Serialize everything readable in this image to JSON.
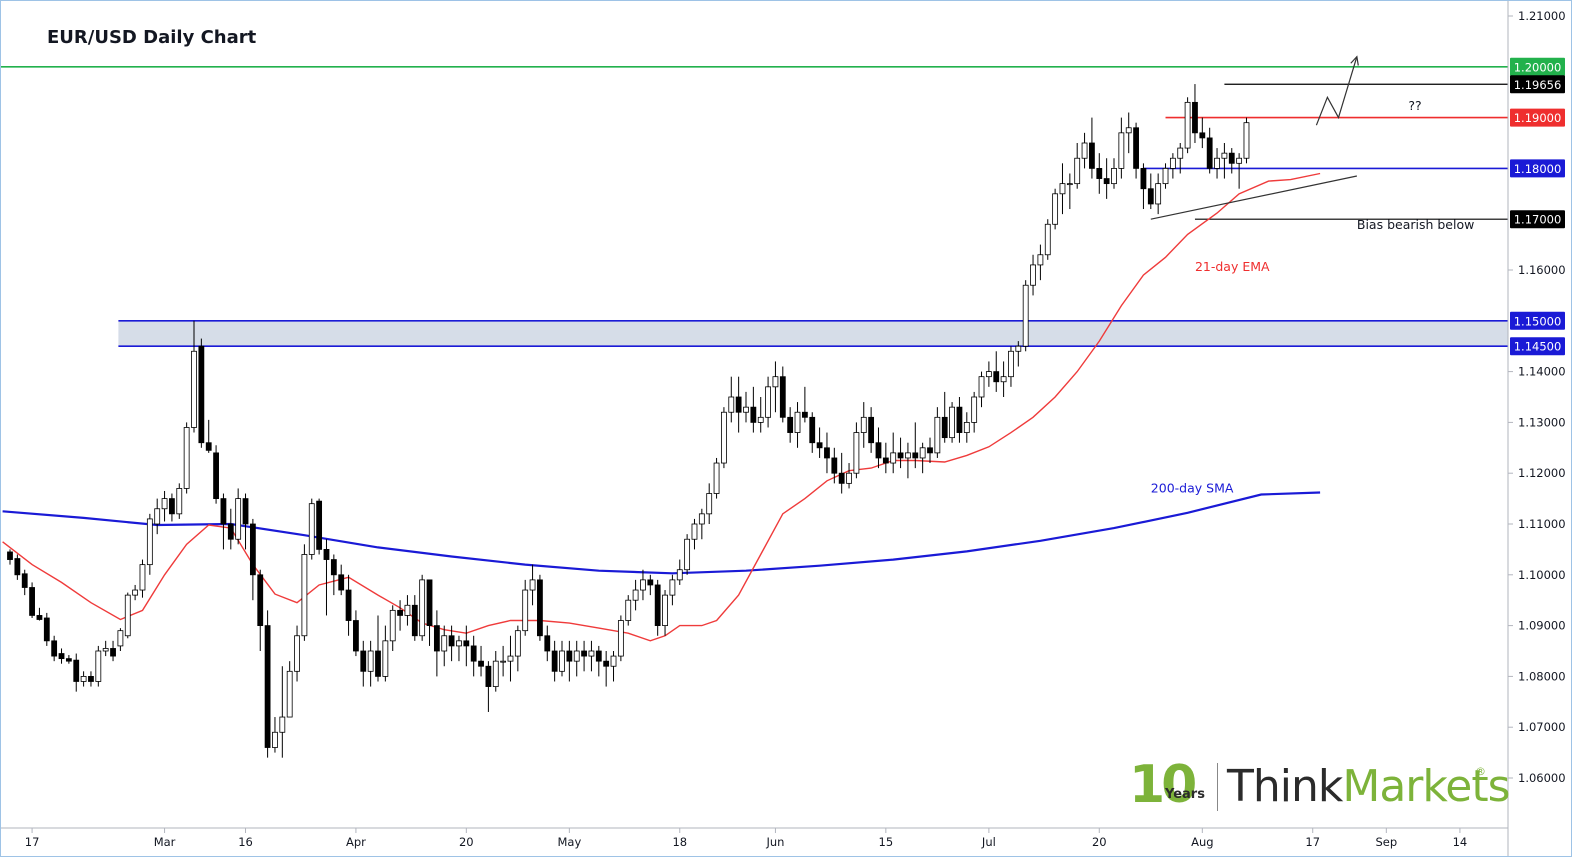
{
  "title": "EUR/USD Daily Chart",
  "colors": {
    "bull": "#ffffff",
    "bear": "#000000",
    "wick": "#000000",
    "ema": "#ef3b3b",
    "sma": "#1a1ad6",
    "green": "#22b14c",
    "red": "#ef2e2e",
    "blue": "#1a1ad6",
    "zone": "#d6dde8",
    "black_label": "#000000",
    "logo_green": "#7db33a"
  },
  "chart_data": {
    "type": "candlestick",
    "title": "EUR/USD Daily Chart",
    "ylim": [
      1.0505,
      1.2103
    ],
    "y_tick_labels": [
      "1.21000",
      "1.20000",
      "1.19656",
      "1.19000",
      "1.18000",
      "1.17000",
      "1.16000",
      "1.15000",
      "1.14500",
      "1.14000",
      "1.13000",
      "1.12000",
      "1.11000",
      "1.10000",
      "1.09000",
      "1.08000",
      "1.07000",
      "1.06000"
    ],
    "plain_ticks": [
      1.21,
      1.16,
      1.14,
      1.13,
      1.12,
      1.11,
      1.1,
      1.09,
      1.08,
      1.07,
      1.06
    ],
    "x_tick_labels": [
      "17",
      "Mar",
      "16",
      "Apr",
      "20",
      "May",
      "18",
      "Jun",
      "15",
      "Jul",
      "20",
      "Aug",
      "17",
      "Sep",
      "14"
    ],
    "x_tick_bar_index": [
      3,
      21,
      32,
      47,
      62,
      76,
      91,
      104,
      119,
      133,
      148,
      162,
      177,
      187,
      197
    ],
    "levels": [
      {
        "name": "resistance-1.20000",
        "value": 1.2,
        "label": "1.20000",
        "color": "green",
        "from_bar": -3
      },
      {
        "name": "level-1.19656",
        "value": 1.19656,
        "label": "1.19656",
        "color": "black",
        "from_bar": 165
      },
      {
        "name": "resistance-1.19000",
        "value": 1.19,
        "label": "1.19000",
        "color": "red",
        "from_bar": 157
      },
      {
        "name": "support-1.18000",
        "value": 1.18,
        "label": "1.18000",
        "color": "blue",
        "from_bar": 154
      },
      {
        "name": "support-1.17000",
        "value": 1.17,
        "label": "1.17000",
        "color": "black",
        "from_bar": 161
      }
    ],
    "zone": {
      "low": 1.145,
      "high": 1.15,
      "labels": [
        "1.15000",
        "1.14500"
      ],
      "from_bar": 15
    },
    "annotations": [
      {
        "name": "bias-bearish-label",
        "text": "Bias bearish below",
        "bar": 183,
        "y": 1.1681
      },
      {
        "name": "question-label",
        "text": "??",
        "bar": 190,
        "y": 1.1915
      },
      {
        "name": "ema-label",
        "text": "21-day EMA",
        "bar": 161,
        "y": 1.1598
      },
      {
        "name": "sma-label",
        "text": "200-day SMA",
        "bar": 155,
        "y": 1.1162
      }
    ],
    "trendline": {
      "from": {
        "bar": 155,
        "y": 1.17
      },
      "to": {
        "bar": 183,
        "y": 1.1785
      }
    },
    "projection": [
      {
        "bar": 177.5,
        "y": 1.1885
      },
      {
        "bar": 179,
        "y": 1.194
      },
      {
        "bar": 180.5,
        "y": 1.19
      },
      {
        "bar": 183,
        "y": 1.202
      }
    ],
    "sma_200": [
      [
        -1,
        1.1125
      ],
      [
        10,
        1.1112
      ],
      [
        20,
        1.1098
      ],
      [
        30,
        1.11
      ],
      [
        40,
        1.1078
      ],
      [
        50,
        1.1054
      ],
      [
        60,
        1.1036
      ],
      [
        70,
        1.102
      ],
      [
        80,
        1.1008
      ],
      [
        90,
        1.1003
      ],
      [
        100,
        1.1008
      ],
      [
        110,
        1.1018
      ],
      [
        120,
        1.103
      ],
      [
        130,
        1.1046
      ],
      [
        140,
        1.1067
      ],
      [
        150,
        1.1092
      ],
      [
        160,
        1.1122
      ],
      [
        170,
        1.1158
      ],
      [
        178,
        1.1162
      ]
    ],
    "ema_21": [
      [
        -1,
        1.1065
      ],
      [
        3,
        1.102
      ],
      [
        7,
        1.0985
      ],
      [
        11,
        1.0945
      ],
      [
        15,
        1.0912
      ],
      [
        18,
        1.093
      ],
      [
        21,
        1.1
      ],
      [
        24,
        1.106
      ],
      [
        27,
        1.1098
      ],
      [
        30,
        1.1092
      ],
      [
        33,
        1.102
      ],
      [
        36,
        1.0962
      ],
      [
        39,
        1.0945
      ],
      [
        42,
        1.098
      ],
      [
        46,
        1.0995
      ],
      [
        50,
        1.096
      ],
      [
        53,
        1.0935
      ],
      [
        56,
        1.0905
      ],
      [
        59,
        1.0892
      ],
      [
        62,
        1.0885
      ],
      [
        65,
        1.09
      ],
      [
        68,
        1.091
      ],
      [
        72,
        1.091
      ],
      [
        76,
        1.0905
      ],
      [
        80,
        1.0895
      ],
      [
        84,
        1.0885
      ],
      [
        87,
        1.087
      ],
      [
        89,
        1.088
      ],
      [
        91,
        1.09
      ],
      [
        94,
        1.09
      ],
      [
        96,
        1.091
      ],
      [
        99,
        1.096
      ],
      [
        102,
        1.104
      ],
      [
        105,
        1.112
      ],
      [
        108,
        1.115
      ],
      [
        111,
        1.1185
      ],
      [
        114,
        1.1205
      ],
      [
        117,
        1.121
      ],
      [
        120,
        1.1225
      ],
      [
        123,
        1.1225
      ],
      [
        127,
        1.1222
      ],
      [
        130,
        1.1235
      ],
      [
        133,
        1.1252
      ],
      [
        136,
        1.128
      ],
      [
        139,
        1.131
      ],
      [
        142,
        1.135
      ],
      [
        145,
        1.14
      ],
      [
        148,
        1.146
      ],
      [
        151,
        1.153
      ],
      [
        154,
        1.159
      ],
      [
        157,
        1.1625
      ],
      [
        160,
        1.167
      ],
      [
        164,
        1.1712
      ],
      [
        167,
        1.175
      ],
      [
        171,
        1.1775
      ],
      [
        174,
        1.1778
      ],
      [
        178,
        1.179
      ]
    ],
    "ohlc": [
      [
        1.1045,
        1.105,
        1.102,
        1.103
      ],
      [
        1.1032,
        1.104,
        1.099,
        1.1
      ],
      [
        1.1002,
        1.101,
        1.096,
        1.0975
      ],
      [
        1.0975,
        1.0985,
        1.0915,
        1.092
      ],
      [
        1.092,
        1.0935,
        1.091,
        1.0912
      ],
      [
        1.0915,
        1.0925,
        1.086,
        1.087
      ],
      [
        1.087,
        1.088,
        1.083,
        1.084
      ],
      [
        1.0845,
        1.0855,
        1.0825,
        1.0835
      ],
      [
        1.0835,
        1.0842,
        1.0825,
        1.083
      ],
      [
        1.0832,
        1.0845,
        1.077,
        1.079
      ],
      [
        1.079,
        1.081,
        1.078,
        1.08
      ],
      [
        1.08,
        1.081,
        1.078,
        1.079
      ],
      [
        1.079,
        1.086,
        1.078,
        1.085
      ],
      [
        1.085,
        1.087,
        1.084,
        1.0855
      ],
      [
        1.0855,
        1.087,
        1.083,
        1.084
      ],
      [
        1.086,
        1.0895,
        1.085,
        1.089
      ],
      [
        1.088,
        1.0965,
        1.0875,
        1.096
      ],
      [
        1.096,
        1.098,
        1.095,
        1.097
      ],
      [
        1.097,
        1.103,
        1.0955,
        1.102
      ],
      [
        1.102,
        1.112,
        1.1,
        1.111
      ],
      [
        1.11,
        1.115,
        1.108,
        1.113
      ],
      [
        1.113,
        1.1165,
        1.1105,
        1.115
      ],
      [
        1.115,
        1.116,
        1.1105,
        1.112
      ],
      [
        1.112,
        1.118,
        1.111,
        1.117
      ],
      [
        1.117,
        1.13,
        1.116,
        1.129
      ],
      [
        1.129,
        1.15,
        1.128,
        1.144
      ],
      [
        1.145,
        1.1465,
        1.125,
        1.126
      ],
      [
        1.126,
        1.1305,
        1.124,
        1.1245
      ],
      [
        1.124,
        1.1255,
        1.114,
        1.115
      ],
      [
        1.115,
        1.116,
        1.105,
        1.11
      ],
      [
        1.11,
        1.113,
        1.105,
        1.107
      ],
      [
        1.107,
        1.117,
        1.106,
        1.115
      ],
      [
        1.115,
        1.116,
        1.105,
        1.11
      ],
      [
        1.11,
        1.111,
        1.095,
        1.1
      ],
      [
        1.1,
        1.101,
        1.085,
        1.09
      ],
      [
        1.09,
        1.093,
        1.064,
        1.066
      ],
      [
        1.066,
        1.072,
        1.065,
        1.069
      ],
      [
        1.069,
        1.082,
        1.064,
        1.072
      ],
      [
        1.072,
        1.083,
        1.072,
        1.081
      ],
      [
        1.081,
        1.09,
        1.079,
        1.088
      ],
      [
        1.088,
        1.106,
        1.087,
        1.104
      ],
      [
        1.104,
        1.115,
        1.103,
        1.114
      ],
      [
        1.1145,
        1.115,
        1.104,
        1.105
      ],
      [
        1.105,
        1.107,
        1.092,
        1.103
      ],
      [
        1.103,
        1.104,
        1.096,
        1.1
      ],
      [
        1.1,
        1.102,
        1.096,
        1.097
      ],
      [
        1.097,
        1.1,
        1.088,
        1.091
      ],
      [
        1.091,
        1.093,
        1.084,
        1.085
      ],
      [
        1.085,
        1.087,
        1.078,
        1.081
      ],
      [
        1.081,
        1.087,
        1.078,
        1.085
      ],
      [
        1.085,
        1.092,
        1.079,
        1.08
      ],
      [
        1.08,
        1.09,
        1.079,
        1.087
      ],
      [
        1.087,
        1.094,
        1.085,
        1.093
      ],
      [
        1.093,
        1.095,
        1.089,
        1.092
      ],
      [
        1.092,
        1.096,
        1.09,
        1.094
      ],
      [
        1.094,
        1.096,
        1.087,
        1.088
      ],
      [
        1.088,
        1.1,
        1.087,
        1.099
      ],
      [
        1.099,
        1.099,
        1.086,
        1.09
      ],
      [
        1.09,
        1.093,
        1.08,
        1.085
      ],
      [
        1.085,
        1.09,
        1.082,
        1.088
      ],
      [
        1.088,
        1.09,
        1.083,
        1.086
      ],
      [
        1.086,
        1.088,
        1.083,
        1.087
      ],
      [
        1.087,
        1.09,
        1.082,
        1.086
      ],
      [
        1.086,
        1.088,
        1.08,
        1.083
      ],
      [
        1.083,
        1.086,
        1.08,
        1.082
      ],
      [
        1.082,
        1.083,
        1.073,
        1.078
      ],
      [
        1.078,
        1.085,
        1.077,
        1.083
      ],
      [
        1.083,
        1.086,
        1.08,
        1.083
      ],
      [
        1.083,
        1.088,
        1.079,
        1.084
      ],
      [
        1.084,
        1.09,
        1.081,
        1.089
      ],
      [
        1.089,
        1.099,
        1.088,
        1.097
      ],
      [
        1.097,
        1.102,
        1.094,
        1.099
      ],
      [
        1.099,
        1.1,
        1.087,
        1.088
      ],
      [
        1.088,
        1.09,
        1.083,
        1.085
      ],
      [
        1.085,
        1.087,
        1.079,
        1.081
      ],
      [
        1.081,
        1.087,
        1.08,
        1.085
      ],
      [
        1.085,
        1.087,
        1.079,
        1.083
      ],
      [
        1.083,
        1.087,
        1.08,
        1.085
      ],
      [
        1.085,
        1.087,
        1.081,
        1.084
      ],
      [
        1.084,
        1.087,
        1.081,
        1.085
      ],
      [
        1.085,
        1.086,
        1.08,
        1.083
      ],
      [
        1.083,
        1.085,
        1.078,
        1.082
      ],
      [
        1.082,
        1.085,
        1.079,
        1.084
      ],
      [
        1.084,
        1.092,
        1.083,
        1.091
      ],
      [
        1.091,
        1.096,
        1.09,
        1.095
      ],
      [
        1.095,
        1.099,
        1.093,
        1.097
      ],
      [
        1.097,
        1.101,
        1.095,
        1.099
      ],
      [
        1.099,
        1.1,
        1.096,
        1.098
      ],
      [
        1.098,
        1.099,
        1.088,
        1.09
      ],
      [
        1.09,
        1.097,
        1.088,
        1.096
      ],
      [
        1.096,
        1.1,
        1.094,
        1.099
      ],
      [
        1.099,
        1.103,
        1.098,
        1.101
      ],
      [
        1.101,
        1.108,
        1.1,
        1.107
      ],
      [
        1.107,
        1.111,
        1.105,
        1.11
      ],
      [
        1.11,
        1.113,
        1.107,
        1.112
      ],
      [
        1.112,
        1.118,
        1.11,
        1.116
      ],
      [
        1.116,
        1.123,
        1.115,
        1.122
      ],
      [
        1.122,
        1.133,
        1.121,
        1.132
      ],
      [
        1.132,
        1.139,
        1.13,
        1.135
      ],
      [
        1.135,
        1.139,
        1.128,
        1.132
      ],
      [
        1.132,
        1.136,
        1.13,
        1.133
      ],
      [
        1.133,
        1.137,
        1.128,
        1.13
      ],
      [
        1.13,
        1.135,
        1.128,
        1.131
      ],
      [
        1.131,
        1.139,
        1.129,
        1.137
      ],
      [
        1.137,
        1.142,
        1.132,
        1.139
      ],
      [
        1.139,
        1.141,
        1.13,
        1.131
      ],
      [
        1.131,
        1.133,
        1.126,
        1.128
      ],
      [
        1.128,
        1.134,
        1.125,
        1.132
      ],
      [
        1.132,
        1.137,
        1.13,
        1.131
      ],
      [
        1.131,
        1.132,
        1.124,
        1.126
      ],
      [
        1.126,
        1.129,
        1.123,
        1.125
      ],
      [
        1.125,
        1.128,
        1.12,
        1.123
      ],
      [
        1.123,
        1.125,
        1.118,
        1.12
      ],
      [
        1.12,
        1.124,
        1.116,
        1.118
      ],
      [
        1.118,
        1.122,
        1.117,
        1.12
      ],
      [
        1.12,
        1.13,
        1.119,
        1.128
      ],
      [
        1.128,
        1.134,
        1.125,
        1.131
      ],
      [
        1.131,
        1.133,
        1.124,
        1.126
      ],
      [
        1.126,
        1.129,
        1.121,
        1.123
      ],
      [
        1.123,
        1.126,
        1.12,
        1.122
      ],
      [
        1.122,
        1.128,
        1.12,
        1.124
      ],
      [
        1.124,
        1.127,
        1.121,
        1.123
      ],
      [
        1.123,
        1.126,
        1.119,
        1.124
      ],
      [
        1.124,
        1.13,
        1.121,
        1.123
      ],
      [
        1.123,
        1.126,
        1.12,
        1.125
      ],
      [
        1.125,
        1.127,
        1.122,
        1.124
      ],
      [
        1.124,
        1.133,
        1.123,
        1.131
      ],
      [
        1.131,
        1.136,
        1.126,
        1.127
      ],
      [
        1.127,
        1.134,
        1.126,
        1.133
      ],
      [
        1.133,
        1.135,
        1.126,
        1.128
      ],
      [
        1.128,
        1.132,
        1.126,
        1.13
      ],
      [
        1.13,
        1.136,
        1.128,
        1.135
      ],
      [
        1.135,
        1.14,
        1.133,
        1.139
      ],
      [
        1.139,
        1.142,
        1.137,
        1.14
      ],
      [
        1.14,
        1.144,
        1.136,
        1.138
      ],
      [
        1.138,
        1.142,
        1.135,
        1.139
      ],
      [
        1.139,
        1.145,
        1.137,
        1.144
      ],
      [
        1.144,
        1.146,
        1.141,
        1.145
      ],
      [
        1.145,
        1.158,
        1.144,
        1.157
      ],
      [
        1.157,
        1.163,
        1.155,
        1.161
      ],
      [
        1.161,
        1.165,
        1.158,
        1.163
      ],
      [
        1.163,
        1.17,
        1.162,
        1.169
      ],
      [
        1.169,
        1.176,
        1.168,
        1.175
      ],
      [
        1.175,
        1.181,
        1.171,
        1.177
      ],
      [
        1.177,
        1.179,
        1.172,
        1.177
      ],
      [
        1.177,
        1.185,
        1.176,
        1.182
      ],
      [
        1.182,
        1.187,
        1.18,
        1.185
      ],
      [
        1.185,
        1.19,
        1.178,
        1.18
      ],
      [
        1.18,
        1.183,
        1.175,
        1.178
      ],
      [
        1.178,
        1.182,
        1.174,
        1.177
      ],
      [
        1.177,
        1.182,
        1.176,
        1.18
      ],
      [
        1.18,
        1.19,
        1.178,
        1.187
      ],
      [
        1.187,
        1.191,
        1.183,
        1.188
      ],
      [
        1.188,
        1.189,
        1.178,
        1.18
      ],
      [
        1.18,
        1.181,
        1.172,
        1.176
      ],
      [
        1.176,
        1.179,
        1.172,
        1.173
      ],
      [
        1.173,
        1.179,
        1.171,
        1.177
      ],
      [
        1.177,
        1.181,
        1.176,
        1.18
      ],
      [
        1.18,
        1.183,
        1.178,
        1.182
      ],
      [
        1.182,
        1.185,
        1.179,
        1.184
      ],
      [
        1.184,
        1.194,
        1.183,
        1.193
      ],
      [
        1.193,
        1.1966,
        1.185,
        1.187
      ],
      [
        1.187,
        1.19,
        1.184,
        1.186
      ],
      [
        1.186,
        1.188,
        1.179,
        1.18
      ],
      [
        1.18,
        1.184,
        1.178,
        1.182
      ],
      [
        1.182,
        1.185,
        1.178,
        1.183
      ],
      [
        1.183,
        1.184,
        1.179,
        1.181
      ],
      [
        1.181,
        1.183,
        1.176,
        1.182
      ],
      [
        1.182,
        1.19,
        1.181,
        1.189
      ]
    ]
  }
}
